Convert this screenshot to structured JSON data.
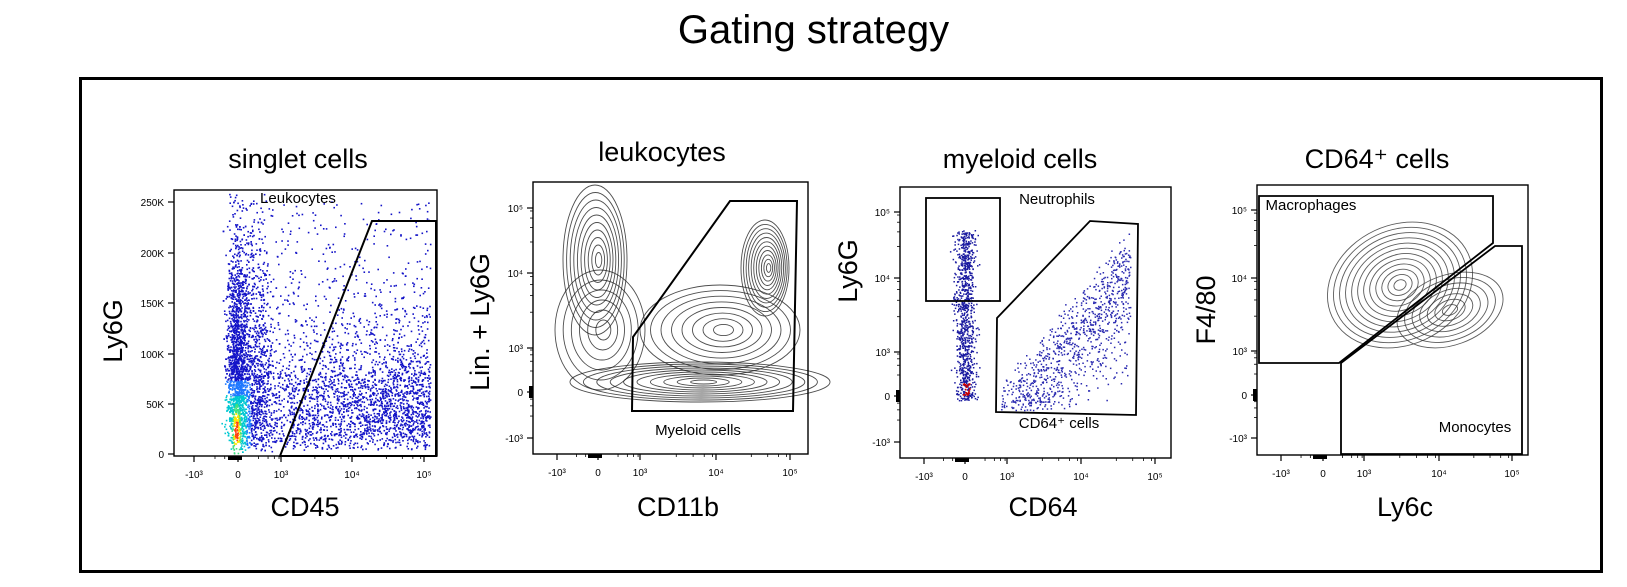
{
  "title": "Gating strategy",
  "chart_data": [
    {
      "type": "scatter",
      "title": "singlet cells",
      "xlabel": "CD45",
      "ylabel": "Ly6G",
      "x_ticks": [
        "-10³",
        "0",
        "10³",
        "10⁴",
        "10⁵"
      ],
      "y_ticks": [
        "0",
        "50K",
        "100K",
        "150K",
        "200K",
        "250K"
      ],
      "y_scale": "linear",
      "x_scale": "biexponential",
      "gates": [
        {
          "name": "Leukocytes"
        }
      ],
      "colors": [
        "#0000cc",
        "#1e90ff",
        "#00c8c8",
        "#ffff00",
        "#ff3300"
      ]
    },
    {
      "type": "contour",
      "title": "leukocytes",
      "xlabel": "CD11b",
      "ylabel": "Lin. + Ly6G",
      "x_ticks": [
        "-10³",
        "0",
        "10³",
        "10⁴",
        "10⁵"
      ],
      "y_ticks": [
        "-10³",
        "0",
        "10³",
        "10⁴",
        "10⁵"
      ],
      "gates": [
        {
          "name": "Myeloid cells"
        }
      ]
    },
    {
      "type": "scatter",
      "title": "myeloid cells",
      "xlabel": "CD64",
      "ylabel": "Ly6G",
      "x_ticks": [
        "-10³",
        "0",
        "10³",
        "10⁴",
        "10⁵"
      ],
      "y_ticks": [
        "-10³",
        "0",
        "10³",
        "10⁴",
        "10⁵"
      ],
      "gates": [
        {
          "name": "Neutrophils"
        },
        {
          "name": "CD64⁺ cells"
        }
      ],
      "colors": [
        "#1a1aa0",
        "#cc0000"
      ]
    },
    {
      "type": "contour",
      "title": "CD64⁺ cells",
      "xlabel": "Ly6c",
      "ylabel": "F4/80",
      "x_ticks": [
        "-10³",
        "0",
        "10³",
        "10⁴",
        "10⁵"
      ],
      "y_ticks": [
        "-10³",
        "0",
        "10³",
        "10⁴",
        "10⁵"
      ],
      "gates": [
        {
          "name": "Macrophages"
        },
        {
          "name": "Monocytes"
        }
      ]
    }
  ]
}
